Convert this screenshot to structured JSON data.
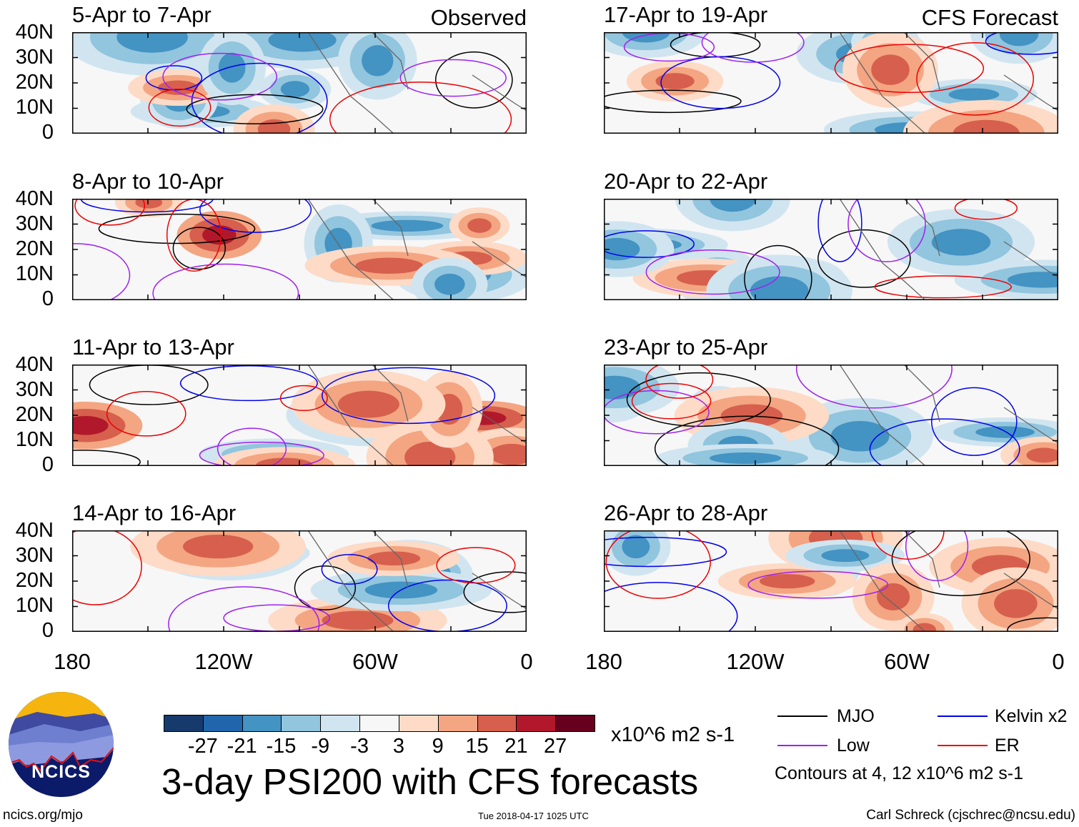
{
  "figure": {
    "title": "3-day PSI200 with CFS forecasts",
    "timestamp": "Tue 2018-04-17 1025 UTC",
    "site": "ncics.org/mjo",
    "author": "Carl Schreck (cjschrec@ncsu.edu)",
    "logo_text": "NCICS"
  },
  "panels_left": [
    {
      "title": "5-Apr to 7-Apr",
      "label": "Observed"
    },
    {
      "title": "8-Apr to 10-Apr",
      "label": ""
    },
    {
      "title": "11-Apr to 13-Apr",
      "label": ""
    },
    {
      "title": "14-Apr to 16-Apr",
      "label": ""
    }
  ],
  "panels_right": [
    {
      "title": "17-Apr to 19-Apr",
      "label": "CFS Forecast"
    },
    {
      "title": "20-Apr to 22-Apr",
      "label": ""
    },
    {
      "title": "23-Apr to 25-Apr",
      "label": ""
    },
    {
      "title": "26-Apr to 28-Apr",
      "label": ""
    }
  ],
  "lat_labels": [
    "40N",
    "30N",
    "20N",
    "10N",
    "0"
  ],
  "lon_labels": [
    "180",
    "120W",
    "60W",
    "0"
  ],
  "colorbar": {
    "units": "x10^6 m2 s-1",
    "labels": [
      "-27",
      "-21",
      "-15",
      "-9",
      "-3",
      "3",
      "9",
      "15",
      "21",
      "27"
    ],
    "colors": [
      "#163a6c",
      "#2166ac",
      "#4393c3",
      "#92c5de",
      "#d1e5f0",
      "#f7f7f7",
      "#fddbc7",
      "#f4a582",
      "#d6604d",
      "#b2182b",
      "#67001f"
    ]
  },
  "legend": {
    "items": [
      {
        "label": "MJO",
        "color": "#000000"
      },
      {
        "label": "Kelvin x2",
        "color": "#0000ee"
      },
      {
        "label": "Low",
        "color": "#a020f0"
      },
      {
        "label": "ER",
        "color": "#ee0000"
      }
    ],
    "note": "Contours at 4, 12 x10^6 m2 s-1"
  }
}
